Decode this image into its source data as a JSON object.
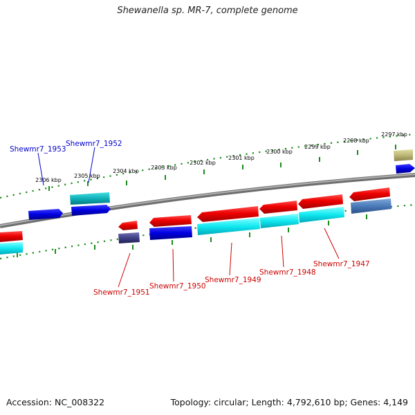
{
  "title": "Shewanella sp. MR-7, complete genome",
  "footer": {
    "accession": "Accession: NC_008322",
    "summary": "Topology: circular; Length: 4,792,610 bp; Genes: 4,149"
  },
  "colors": {
    "backbone": "#8a8a8a",
    "tick": "#1a8a1a",
    "forward_label": "#0000cc",
    "reverse_label": "#cc0000"
  },
  "scale_labels": [
    "2306 kbp",
    "2305 kbp",
    "2304 kbp",
    "2303 kbp",
    "2302 kbp",
    "2301 kbp",
    "2300 kbp",
    "2299 kbp",
    "2298 kbp",
    "2297 kbp"
  ],
  "gene_labels": {
    "forward": [
      "Shewmr7_1953",
      "Shewmr7_1952"
    ],
    "reverse": [
      "Shewmr7_1951",
      "Shewmr7_1950",
      "Shewmr7_1949",
      "Shewmr7_1948",
      "Shewmr7_1947"
    ]
  }
}
